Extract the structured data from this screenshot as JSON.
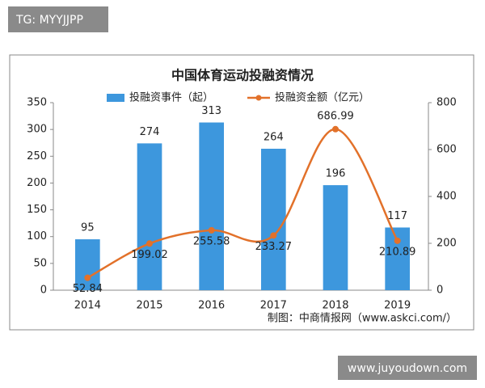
{
  "chart_data": {
    "type": "bar-line",
    "title": "中国体育运动投融资情况",
    "categories": [
      "2014",
      "2015",
      "2016",
      "2017",
      "2018",
      "2019"
    ],
    "series": [
      {
        "name": "投融资事件（起）",
        "type": "bar",
        "color": "#3d97dd",
        "values": [
          95,
          274,
          313,
          264,
          196,
          117
        ]
      },
      {
        "name": "投融资金额（亿元）",
        "type": "line",
        "axis": "y2",
        "color": "#e2712a",
        "values": [
          52.84,
          199.02,
          255.58,
          233.27,
          686.99,
          210.89
        ]
      }
    ],
    "ylim": [
      0,
      350
    ],
    "yticks": [
      0,
      50,
      100,
      150,
      200,
      250,
      300,
      350
    ],
    "y2lim": [
      0,
      800
    ],
    "y2ticks": [
      0,
      200,
      400,
      600,
      800
    ],
    "grid": false,
    "source": "制图：中商情报网（www.askci.com/）"
  },
  "overlays": {
    "top_left": "TG: MYYJJPP",
    "bottom_right": "www.juyoudown.com"
  }
}
